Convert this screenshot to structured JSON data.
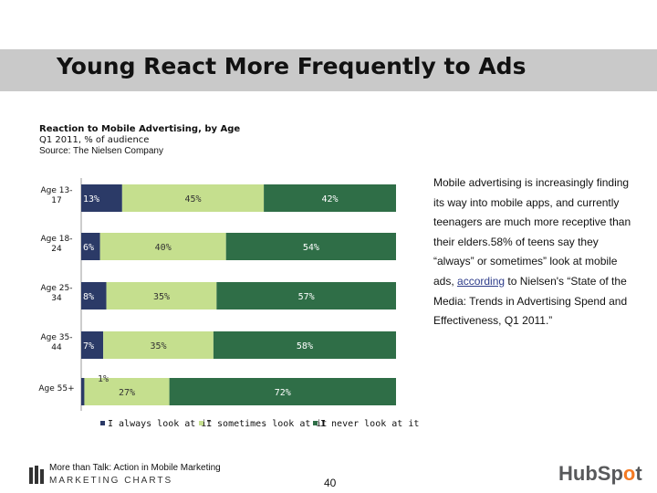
{
  "slide": {
    "title": "Young React More Frequently to Ads",
    "page_number": "40"
  },
  "chart_header": {
    "title": "Reaction to Mobile Advertising, by Age",
    "period": "Q1 2011, % of audience",
    "source": "Source: The Nielsen Company"
  },
  "chart_data": {
    "type": "bar",
    "orientation": "horizontal",
    "stacked": true,
    "categories": [
      "Age 13-17",
      "Age 18-24",
      "Age 25-34",
      "Age 35-44",
      "Age 55+"
    ],
    "category_lines": [
      [
        "Age 13-",
        "17"
      ],
      [
        "Age 18-",
        "24"
      ],
      [
        "Age 25-",
        "34"
      ],
      [
        "Age 35-",
        "44"
      ],
      [
        "Age 55+"
      ]
    ],
    "series": [
      {
        "name": "I always look at it",
        "values": [
          13,
          6,
          8,
          7,
          1
        ],
        "labels": [
          "13%",
          "6%",
          "8%",
          "7%",
          "1%"
        ],
        "color": "#2b3a67"
      },
      {
        "name": "I sometimes look at it",
        "values": [
          45,
          40,
          35,
          35,
          27
        ],
        "labels": [
          "45%",
          "40%",
          "35%",
          "35%",
          "27%"
        ],
        "color": "#c5df8e"
      },
      {
        "name": "I never look at it",
        "values": [
          42,
          54,
          57,
          58,
          72
        ],
        "labels": [
          "42%",
          "54%",
          "57%",
          "58%",
          "72%"
        ],
        "color": "#2f6e47"
      }
    ],
    "legend_position": "bottom",
    "grid": false
  },
  "side_note": {
    "text_before_link": "Mobile advertising is increasingly finding its way into mobile apps, and currently teenagers are much more receptive than their elders.58% of teens say they “always” or sometimes” look at mobile ads, ",
    "link_text": "according",
    "text_after_link": " to Nielsen's “State of the Media: Trends in Advertising Spend and Effectiveness, Q1 2011.”"
  },
  "footer": {
    "title": "More than Talk: Action in Mobile Marketing",
    "brand": "MARKETING CHARTS",
    "logo_text_pre": "HubSp",
    "logo_text_o": "o",
    "logo_text_post": "t"
  }
}
